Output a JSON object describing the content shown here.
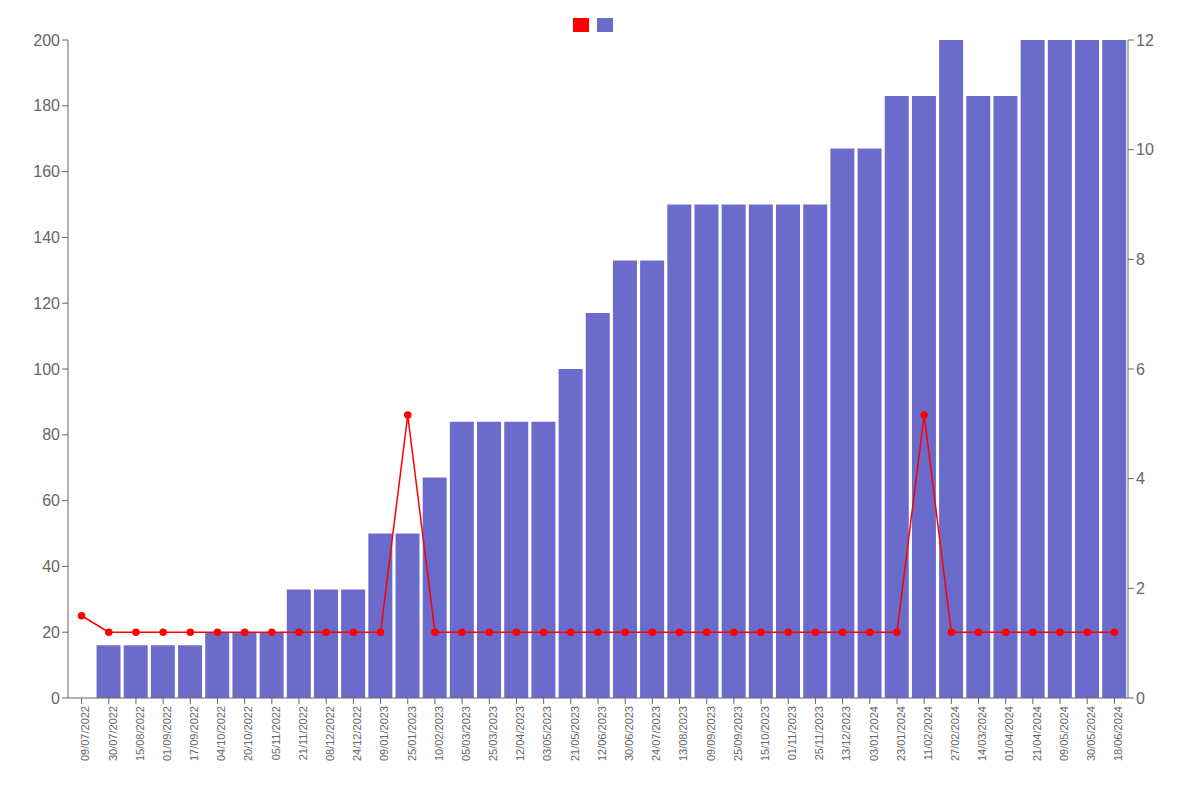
{
  "chart_data": {
    "type": "bar",
    "categories": [
      "09/07/2022",
      "30/07/2022",
      "15/08/2022",
      "01/09/2022",
      "17/09/2022",
      "04/10/2022",
      "20/10/2022",
      "05/11/2022",
      "21/11/2022",
      "08/12/2022",
      "24/12/2022",
      "09/01/2023",
      "25/01/2023",
      "10/02/2023",
      "05/03/2023",
      "25/03/2023",
      "12/04/2023",
      "03/05/2023",
      "21/05/2023",
      "12/06/2023",
      "30/06/2023",
      "24/07/2023",
      "13/08/2023",
      "09/09/2023",
      "25/09/2023",
      "15/10/2023",
      "01/11/2023",
      "25/11/2023",
      "13/12/2023",
      "03/01/2024",
      "23/01/2024",
      "11/02/2024",
      "27/02/2024",
      "14/03/2024",
      "01/04/2024",
      "21/04/2024",
      "09/05/2024",
      "30/05/2024",
      "18/06/2024"
    ],
    "series": [
      {
        "type": "bar",
        "color": "#6B6BCC",
        "values": [
          0,
          16,
          16,
          16,
          16,
          20,
          20,
          20,
          33,
          33,
          33,
          50,
          50,
          67,
          84,
          84,
          84,
          84,
          100,
          117,
          133,
          133,
          150,
          150,
          150,
          150,
          150,
          150,
          167,
          167,
          183,
          183,
          200,
          183,
          183,
          200,
          200,
          200,
          200
        ]
      },
      {
        "type": "line",
        "color": "#ff0000",
        "marker": "circle",
        "values": [
          25,
          20,
          20,
          20,
          20,
          20,
          20,
          20,
          20,
          20,
          20,
          20,
          86,
          20,
          20,
          20,
          20,
          20,
          20,
          20,
          20,
          20,
          20,
          20,
          20,
          20,
          20,
          20,
          20,
          20,
          20,
          86,
          20,
          20,
          20,
          20,
          20,
          20,
          20
        ]
      }
    ],
    "ylim": [
      0,
      200
    ],
    "yticks": [
      0,
      20,
      40,
      60,
      80,
      100,
      120,
      140,
      160,
      180,
      200
    ],
    "y2lim": [
      0,
      12
    ],
    "y2ticks": [
      0,
      2,
      4,
      6,
      8,
      10,
      12
    ],
    "grid": false,
    "legend": "top"
  }
}
